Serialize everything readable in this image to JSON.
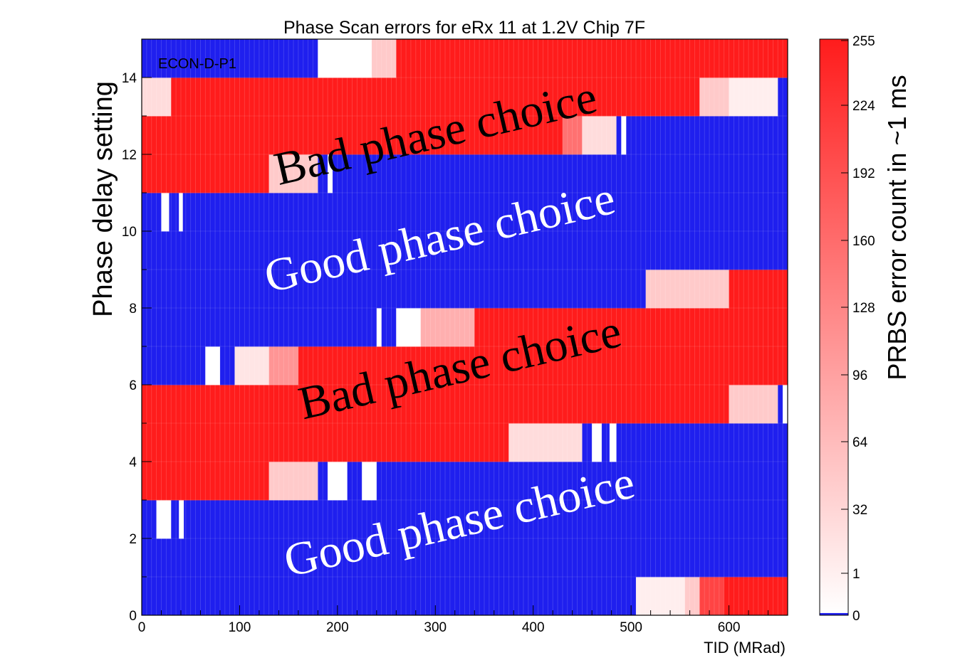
{
  "chart_data": {
    "type": "heatmap",
    "title": "Phase Scan errors for eRx 11 at 1.2V Chip 7F",
    "xlabel": "TID (MRad)",
    "ylabel": "Phase delay setting",
    "zlabel": "PRBS error count in ~1 ms",
    "chip_label": "ECON-D-P1",
    "xlim": [
      0,
      660
    ],
    "ylim": [
      0,
      15
    ],
    "x_ticks": [
      "0",
      "100",
      "200",
      "300",
      "400",
      "500",
      "600"
    ],
    "y_ticks": [
      "0",
      "2",
      "4",
      "6",
      "8",
      "10",
      "12",
      "14"
    ],
    "z_ticks": [
      "0",
      "1",
      "32",
      "64",
      "96",
      "128",
      "160",
      "192",
      "224",
      "255"
    ],
    "colors": {
      "zero": "#1f1fee",
      "low": "#ffffff",
      "high": "#ff1c1c"
    },
    "rows": [
      {
        "phase": 0,
        "segments": [
          [
            0,
            505,
            0
          ],
          [
            505,
            555,
            20
          ],
          [
            555,
            570,
            60
          ],
          [
            570,
            595,
            210
          ],
          [
            595,
            660,
            255
          ]
        ]
      },
      {
        "phase": 1,
        "segments": [
          [
            0,
            660,
            0
          ]
        ]
      },
      {
        "phase": 2,
        "segments": [
          [
            0,
            15,
            0
          ],
          [
            15,
            30,
            1
          ],
          [
            30,
            38,
            0
          ],
          [
            38,
            43,
            1
          ],
          [
            43,
            660,
            0
          ]
        ]
      },
      {
        "phase": 3,
        "segments": [
          [
            0,
            130,
            255
          ],
          [
            130,
            180,
            60
          ],
          [
            180,
            190,
            0
          ],
          [
            190,
            210,
            1
          ],
          [
            210,
            225,
            0
          ],
          [
            225,
            240,
            1
          ],
          [
            240,
            660,
            0
          ]
        ]
      },
      {
        "phase": 4,
        "segments": [
          [
            0,
            375,
            255
          ],
          [
            375,
            450,
            40
          ],
          [
            450,
            460,
            0
          ],
          [
            460,
            470,
            1
          ],
          [
            470,
            478,
            0
          ],
          [
            478,
            485,
            1
          ],
          [
            485,
            660,
            0
          ]
        ]
      },
      {
        "phase": 5,
        "segments": [
          [
            0,
            600,
            255
          ],
          [
            600,
            650,
            60
          ],
          [
            650,
            655,
            0
          ],
          [
            655,
            660,
            1
          ]
        ]
      },
      {
        "phase": 6,
        "segments": [
          [
            0,
            65,
            0
          ],
          [
            65,
            80,
            1
          ],
          [
            80,
            95,
            0
          ],
          [
            95,
            130,
            30
          ],
          [
            130,
            160,
            120
          ],
          [
            160,
            660,
            255
          ]
        ]
      },
      {
        "phase": 7,
        "segments": [
          [
            0,
            240,
            0
          ],
          [
            240,
            245,
            1
          ],
          [
            245,
            260,
            0
          ],
          [
            260,
            285,
            1
          ],
          [
            285,
            340,
            90
          ],
          [
            340,
            660,
            255
          ]
        ]
      },
      {
        "phase": 8,
        "segments": [
          [
            0,
            515,
            0
          ],
          [
            515,
            600,
            60
          ],
          [
            600,
            660,
            255
          ]
        ]
      },
      {
        "phase": 9,
        "segments": [
          [
            0,
            660,
            0
          ]
        ]
      },
      {
        "phase": 10,
        "segments": [
          [
            0,
            20,
            0
          ],
          [
            20,
            28,
            1
          ],
          [
            28,
            38,
            0
          ],
          [
            38,
            42,
            1
          ],
          [
            42,
            660,
            0
          ]
        ]
      },
      {
        "phase": 11,
        "segments": [
          [
            0,
            130,
            255
          ],
          [
            130,
            180,
            60
          ],
          [
            180,
            190,
            0
          ],
          [
            190,
            195,
            1
          ],
          [
            195,
            210,
            0
          ],
          [
            210,
            660,
            0
          ]
        ]
      },
      {
        "phase": 12,
        "segments": [
          [
            0,
            430,
            255
          ],
          [
            430,
            450,
            160
          ],
          [
            450,
            485,
            40
          ],
          [
            485,
            490,
            0
          ],
          [
            490,
            495,
            1
          ],
          [
            495,
            660,
            0
          ]
        ]
      },
      {
        "phase": 13,
        "segments": [
          [
            0,
            30,
            40
          ],
          [
            30,
            570,
            255
          ],
          [
            570,
            600,
            60
          ],
          [
            600,
            650,
            20
          ],
          [
            650,
            660,
            0
          ]
        ]
      },
      {
        "phase": 14,
        "segments": [
          [
            0,
            180,
            0
          ],
          [
            180,
            235,
            1
          ],
          [
            235,
            260,
            60
          ],
          [
            260,
            660,
            255
          ]
        ]
      }
    ],
    "annotations": [
      {
        "text": "Bad phase choice",
        "x": 140,
        "y": 11.2,
        "angle": -13,
        "color": "#000000"
      },
      {
        "text": "Good phase choice",
        "x": 130,
        "y": 8.4,
        "angle": -13,
        "color": "#ffffff"
      },
      {
        "text": "Bad phase choice",
        "x": 165,
        "y": 5.1,
        "angle": -13,
        "color": "#000000"
      },
      {
        "text": "Good phase choice",
        "x": 150,
        "y": 1.0,
        "angle": -13,
        "color": "#ffffff"
      }
    ]
  }
}
